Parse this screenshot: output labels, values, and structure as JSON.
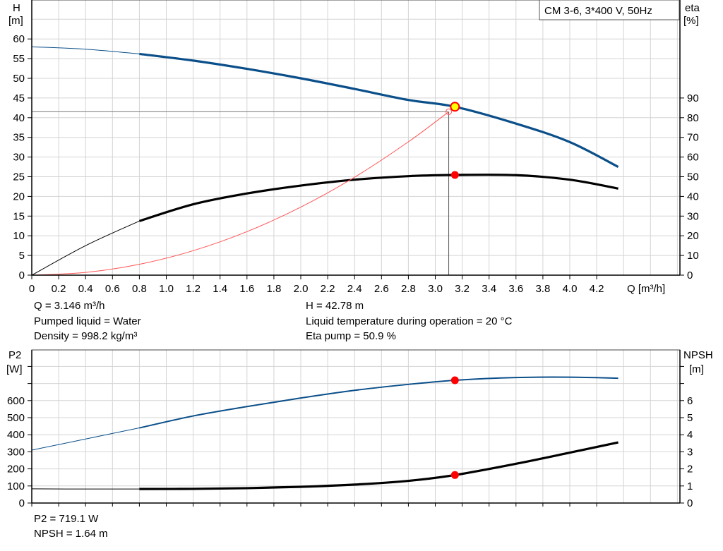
{
  "chart_data": [
    {
      "type": "line",
      "title": "CM 3-6, 3*400 V, 50Hz",
      "xlabel": "Q [m³/h]",
      "ylabel_left": [
        "H",
        "[m]"
      ],
      "ylabel_right": [
        "eta",
        "[%]"
      ],
      "xlim": [
        0,
        4.8
      ],
      "ylim_left": [
        0,
        70
      ],
      "ylim_right": [
        0,
        90
      ],
      "grid": true,
      "x_ticks": [
        "0",
        "0.2",
        "0.4",
        "0.6",
        "0.8",
        "1.0",
        "1.2",
        "1.4",
        "1.6",
        "1.8",
        "2.0",
        "2.2",
        "2.4",
        "2.6",
        "2.8",
        "3.0",
        "3.2",
        "3.4",
        "3.6",
        "3.8",
        "4.0",
        "4.2"
      ],
      "y_left_ticks": [
        "0",
        "5",
        "10",
        "15",
        "20",
        "25",
        "30",
        "35",
        "40",
        "45",
        "50",
        "55",
        "60"
      ],
      "y_right_ticks": [
        "0",
        "10",
        "20",
        "30",
        "40",
        "50",
        "60",
        "70",
        "80",
        "90"
      ],
      "series": [
        {
          "key": "H",
          "axis": "left",
          "color": "#0b4f8a",
          "thick_from": 0.8,
          "x": [
            0,
            0.4,
            0.8,
            1.2,
            1.6,
            2.0,
            2.4,
            2.8,
            3.146,
            3.6,
            4.0,
            4.36
          ],
          "y": [
            58,
            57.4,
            56.2,
            54.5,
            52.4,
            50,
            47.3,
            44.5,
            42.78,
            38.5,
            33.8,
            27.5
          ]
        },
        {
          "key": "eta",
          "axis": "right",
          "color": "#000000",
          "thick_from": 0.8,
          "x": [
            0,
            0.4,
            0.8,
            1.2,
            1.6,
            2.0,
            2.4,
            2.8,
            3.146,
            3.6,
            4.0,
            4.36
          ],
          "y": [
            0,
            15,
            27.5,
            36,
            41.5,
            45.5,
            48.5,
            50.3,
            50.9,
            50.8,
            48.5,
            44
          ]
        },
        {
          "key": "system",
          "axis": "left",
          "color": "#ff5555",
          "x": [
            0,
            0.4,
            0.8,
            1.2,
            1.6,
            2.0,
            2.4,
            2.8,
            3.1
          ],
          "y": [
            0,
            0.69,
            2.76,
            6.22,
            11.06,
            17.28,
            24.88,
            33.87,
            41.5
          ]
        }
      ],
      "duty_point": {
        "Q": 3.1,
        "H": 41.5
      },
      "operating_point": {
        "Q": 3.146,
        "H": 42.78,
        "eta": 50.9
      }
    },
    {
      "type": "line",
      "xlabel": "",
      "ylabel_left": [
        "P2",
        "[W]"
      ],
      "ylabel_right": [
        "NPSH",
        "[m]"
      ],
      "xlim": [
        0,
        4.8
      ],
      "ylim_left": [
        0,
        900
      ],
      "ylim_right": [
        0,
        9
      ],
      "grid": true,
      "y_left_ticks": [
        "0",
        "100",
        "200",
        "300",
        "400",
        "500",
        "600"
      ],
      "y_right_ticks": [
        "0",
        "1",
        "2",
        "3",
        "4",
        "5",
        "6"
      ],
      "series": [
        {
          "key": "P2",
          "axis": "left",
          "color": "#0b4f8a",
          "thick_from": 0.8,
          "x": [
            0,
            0.4,
            0.8,
            1.2,
            1.6,
            2.0,
            2.4,
            2.8,
            3.146,
            3.6,
            4.0,
            4.36
          ],
          "y": [
            310,
            375,
            440,
            510,
            565,
            615,
            660,
            695,
            719,
            735,
            737,
            731
          ]
        },
        {
          "key": "NPSH",
          "axis": "right",
          "color": "#000000",
          "thick_from": 0.8,
          "x": [
            0,
            0.4,
            0.8,
            1.2,
            1.6,
            2.0,
            2.4,
            2.8,
            3.146,
            3.6,
            4.0,
            4.36
          ],
          "y": [
            0.83,
            0.82,
            0.82,
            0.83,
            0.87,
            0.95,
            1.08,
            1.3,
            1.64,
            2.3,
            2.95,
            3.55
          ]
        }
      ],
      "operating_point": {
        "Q": 3.146,
        "P2": 719.1,
        "NPSH": 1.64
      }
    }
  ],
  "info_top": {
    "q": "Q = 3.146 m³/h",
    "liquid": "Pumped liquid = Water",
    "density": "Density = 998.2 kg/m³",
    "h": "H = 42.78 m",
    "temp": "Liquid temperature during operation = 20 °C",
    "eta": "Eta pump = 50.9 %"
  },
  "info_bottom": {
    "p2": "P2 = 719.1 W",
    "npsh": "NPSH = 1.64 m"
  }
}
